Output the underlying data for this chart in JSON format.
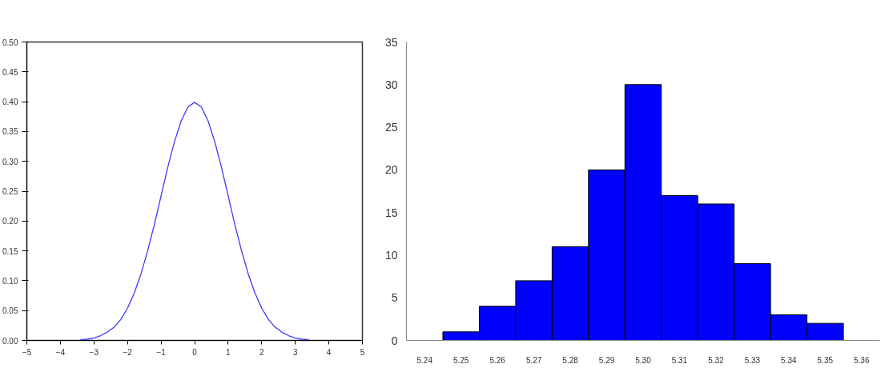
{
  "chart_data": [
    {
      "type": "line",
      "x": [
        -3.4,
        -3.2,
        -3.0,
        -2.8,
        -2.6,
        -2.4,
        -2.2,
        -2.0,
        -1.8,
        -1.6,
        -1.4,
        -1.2,
        -1.0,
        -0.8,
        -0.6,
        -0.4,
        -0.2,
        0,
        0.2,
        0.4,
        0.6,
        0.8,
        1.0,
        1.2,
        1.4,
        1.6,
        1.8,
        2.0,
        2.2,
        2.4,
        2.6,
        2.8,
        3.0,
        3.2,
        3.4
      ],
      "series": [
        {
          "color": "#3a3aff",
          "values": [
            0.001,
            0.002,
            0.004,
            0.008,
            0.014,
            0.022,
            0.035,
            0.054,
            0.079,
            0.111,
            0.15,
            0.194,
            0.242,
            0.29,
            0.333,
            0.368,
            0.391,
            0.399,
            0.391,
            0.368,
            0.333,
            0.29,
            0.242,
            0.194,
            0.15,
            0.111,
            0.079,
            0.054,
            0.035,
            0.022,
            0.014,
            0.008,
            0.004,
            0.002,
            0.001
          ]
        }
      ],
      "xlim": [
        -5,
        5
      ],
      "xticks": [
        -5,
        -4,
        -3,
        -2,
        -1,
        0,
        1,
        2,
        3,
        4,
        5
      ],
      "ylim": [
        0,
        0.5
      ],
      "yticks": [
        {
          "value": 0,
          "label": "0.00"
        },
        0.05,
        {
          "value": 0.1,
          "label": "0.10"
        },
        0.15,
        {
          "value": 0.2,
          "label": "0.20"
        },
        0.25,
        {
          "value": 0.3,
          "label": "0.30"
        },
        0.35,
        {
          "value": 0.4,
          "label": "0.40"
        },
        0.45,
        {
          "value": 0.5,
          "label": "0.50"
        }
      ],
      "grid": false
    },
    {
      "type": "histogram",
      "bins": [
        5.245,
        5.255,
        5.265,
        5.275,
        5.285,
        5.295,
        5.305,
        5.315,
        5.325,
        5.335,
        5.345,
        5.355
      ],
      "values": [
        1,
        4,
        7,
        11,
        20,
        30,
        17,
        16,
        9,
        3,
        2
      ],
      "color": "#0000ff",
      "xlim": [
        5.235,
        5.365
      ],
      "xticks": [
        5.24,
        5.25,
        5.26,
        5.27,
        5.28,
        5.29,
        {
          "value": 5.3,
          "label": "5.30"
        },
        5.31,
        5.32,
        5.33,
        5.34,
        5.35,
        5.36
      ],
      "ylim": [
        0,
        35
      ],
      "yticks": [
        0,
        5,
        10,
        15,
        20,
        25,
        30,
        35
      ],
      "grid": false
    }
  ]
}
